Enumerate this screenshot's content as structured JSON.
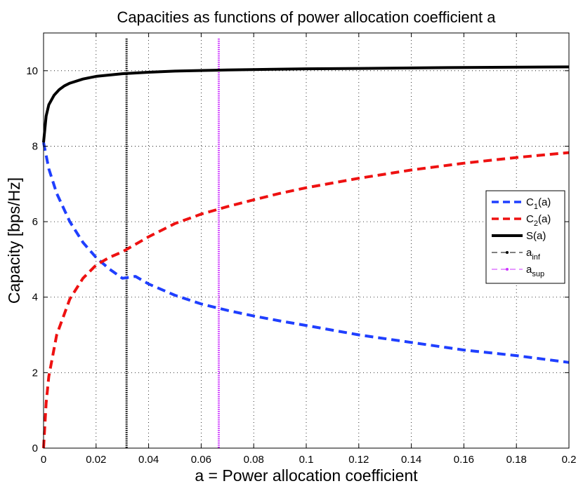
{
  "chart_data": {
    "type": "line",
    "title": "Capacities as functions of power allocation coefficient a",
    "xlabel": "a = Power allocation coefficient",
    "ylabel": "Capacity [bps/Hz]",
    "xlim": [
      0,
      0.2
    ],
    "ylim": [
      0,
      11
    ],
    "xticks": [
      "0",
      "0.02",
      "0.04",
      "0.06",
      "0.08",
      "0.1",
      "0.12",
      "0.14",
      "0.16",
      "0.18",
      "0.2"
    ],
    "yticks": [
      "0",
      "2",
      "4",
      "6",
      "8",
      "10"
    ],
    "grid": true,
    "legend_position": "right",
    "series": [
      {
        "name": "C1(a)",
        "label_main": "C",
        "label_sub": "1",
        "label_tail": "(a)",
        "color": "#1f3fff",
        "style": "dashed",
        "x": [
          0,
          0.002,
          0.005,
          0.01,
          0.015,
          0.02,
          0.025,
          0.03,
          0.035,
          0.04,
          0.05,
          0.06,
          0.07,
          0.08,
          0.09,
          0.1,
          0.12,
          0.14,
          0.16,
          0.18,
          0.2
        ],
        "y": [
          8.1,
          7.4,
          6.75,
          6.0,
          5.45,
          5.05,
          4.75,
          4.5,
          4.55,
          4.35,
          4.05,
          3.82,
          3.65,
          3.5,
          3.37,
          3.25,
          3.0,
          2.8,
          2.6,
          2.45,
          2.27
        ]
      },
      {
        "name": "C2(a)",
        "label_main": "C",
        "label_sub": "2",
        "label_tail": "(a)",
        "color": "#ee1111",
        "style": "dashed",
        "x": [
          0,
          0.001,
          0.002,
          0.005,
          0.01,
          0.015,
          0.02,
          0.025,
          0.03,
          0.035,
          0.04,
          0.05,
          0.06,
          0.07,
          0.08,
          0.09,
          0.1,
          0.12,
          0.14,
          0.16,
          0.18,
          0.2
        ],
        "y": [
          0,
          1.2,
          1.9,
          3.0,
          3.95,
          4.5,
          4.85,
          5.05,
          5.2,
          5.4,
          5.6,
          5.95,
          6.2,
          6.4,
          6.58,
          6.75,
          6.9,
          7.15,
          7.37,
          7.55,
          7.7,
          7.83
        ]
      },
      {
        "name": "S(a)",
        "label_main": "S(a)",
        "label_sub": "",
        "label_tail": "",
        "color": "#000000",
        "style": "solid",
        "x": [
          0,
          0.001,
          0.002,
          0.004,
          0.006,
          0.008,
          0.01,
          0.015,
          0.02,
          0.03,
          0.04,
          0.05,
          0.07,
          0.1,
          0.12,
          0.15,
          0.2
        ],
        "y": [
          8.1,
          8.8,
          9.1,
          9.35,
          9.5,
          9.6,
          9.67,
          9.78,
          9.85,
          9.92,
          9.96,
          9.99,
          10.02,
          10.05,
          10.06,
          10.08,
          10.1
        ]
      }
    ],
    "vertical_lines": [
      {
        "name": "a_inf",
        "label_main": "a",
        "label_sub": "inf",
        "x": 0.0316,
        "color": "#000000"
      },
      {
        "name": "a_sup",
        "label_main": "a",
        "label_sub": "sup",
        "x": 0.0667,
        "color": "#cc33ff"
      }
    ]
  }
}
